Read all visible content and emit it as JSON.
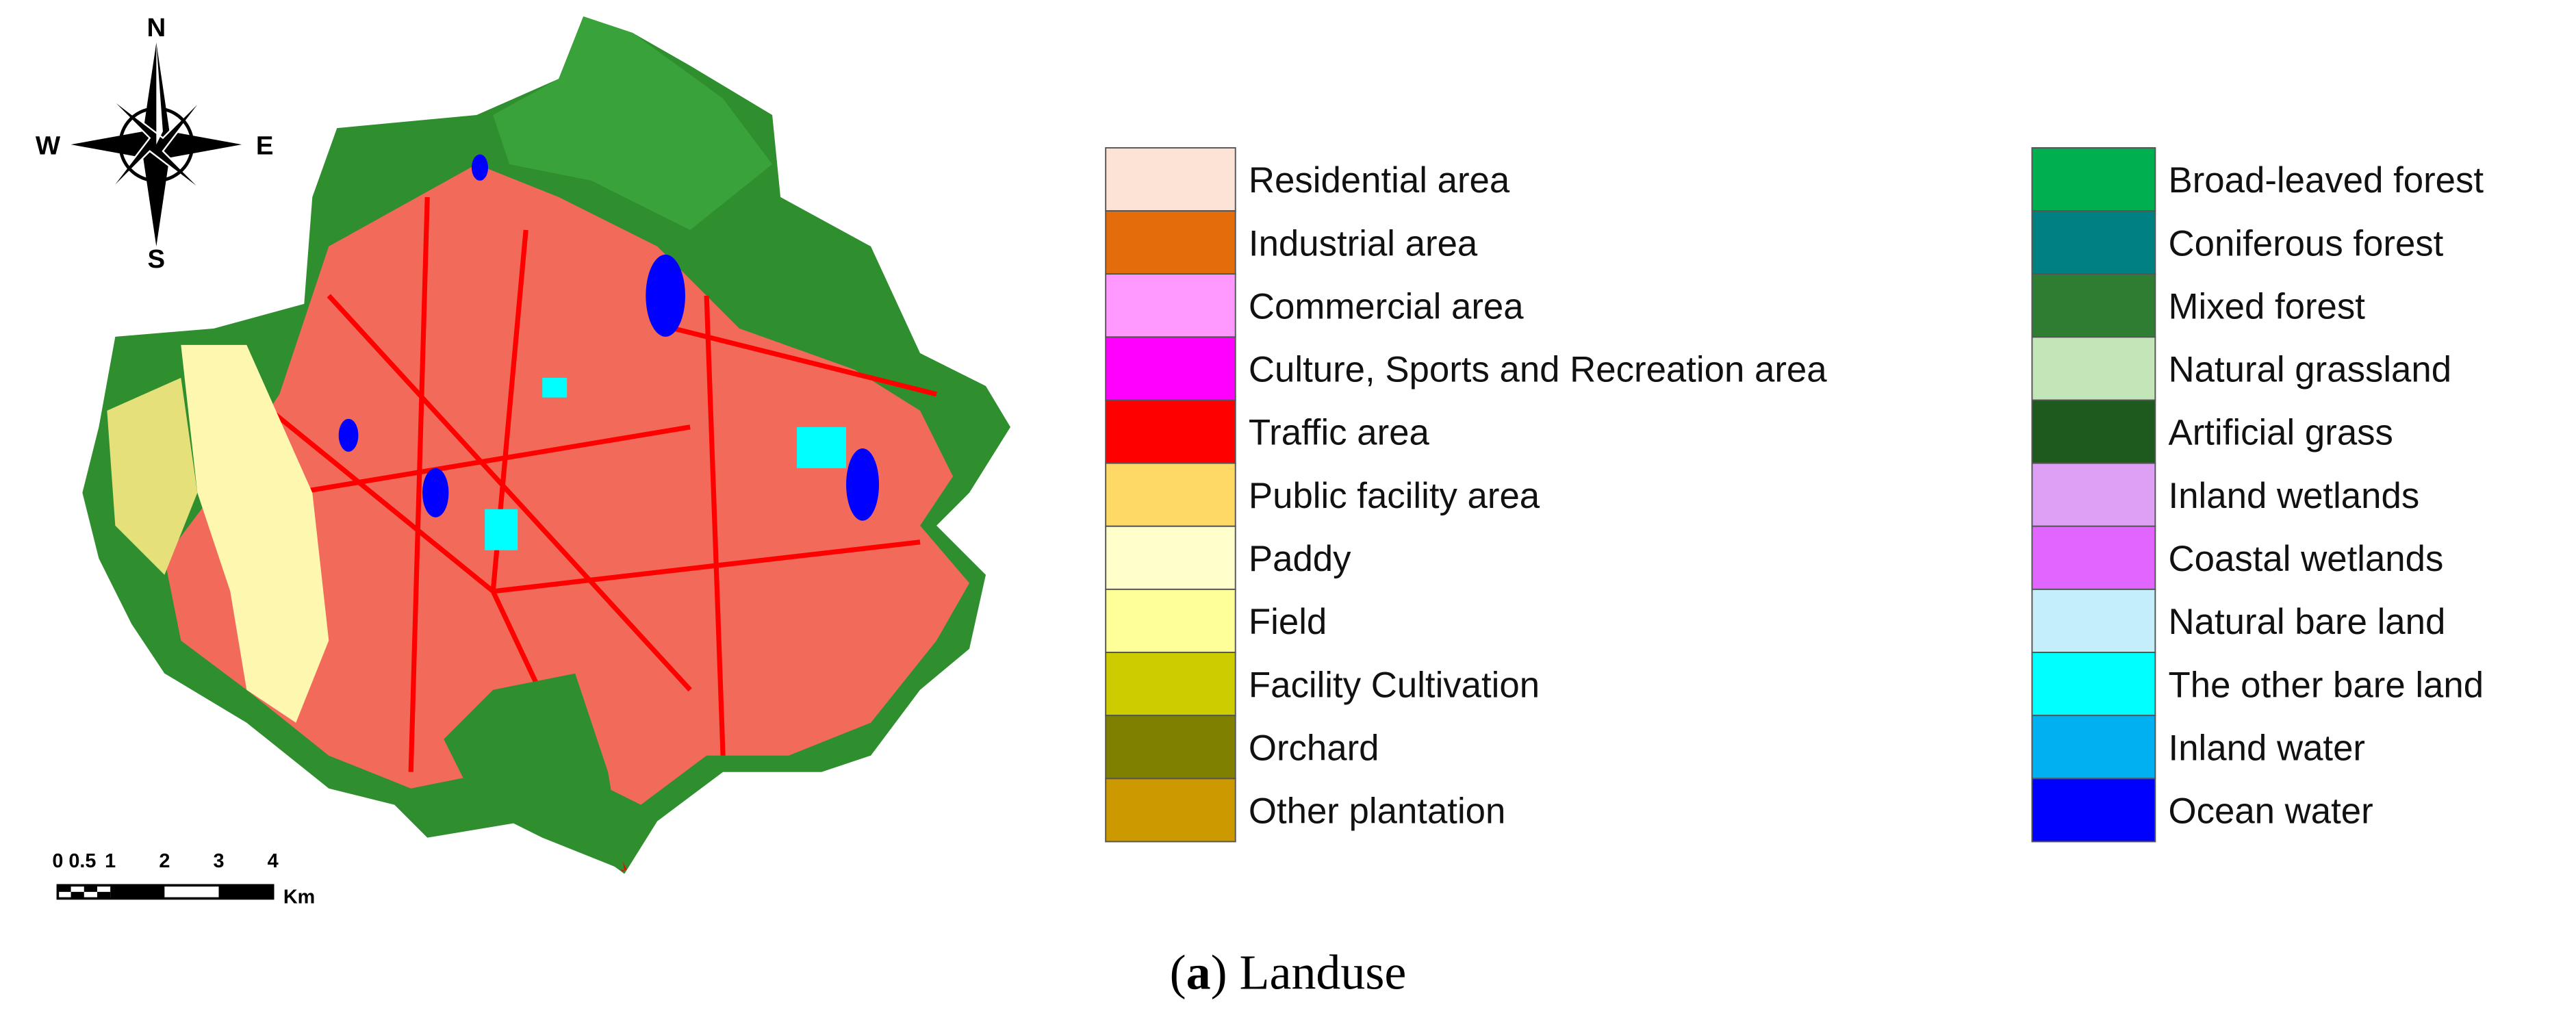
{
  "compass": {
    "north": "N",
    "south": "S",
    "west": "W",
    "east": "E"
  },
  "scale_bar": {
    "labels": [
      "0",
      "0.5",
      "1",
      "2",
      "3",
      "4"
    ],
    "unit": "Km"
  },
  "legend": {
    "left": [
      {
        "label": "Residential area",
        "color": "#fde3d6"
      },
      {
        "label": "Industrial area",
        "color": "#e46c0a"
      },
      {
        "label": "Commercial area",
        "color": "#ff99ff"
      },
      {
        "label": "Culture, Sports and Recreation area",
        "color": "#ff00ff"
      },
      {
        "label": "Traffic area",
        "color": "#ff0000"
      },
      {
        "label": "Public facility area",
        "color": "#ffd966"
      },
      {
        "label": "Paddy",
        "color": "#ffffcc"
      },
      {
        "label": "Field",
        "color": "#ffff99"
      },
      {
        "label": "Facility Cultivation",
        "color": "#cccc00"
      },
      {
        "label": "Orchard",
        "color": "#808000"
      },
      {
        "label": "Other plantation",
        "color": "#cc9900"
      }
    ],
    "right": [
      {
        "label": "Broad-leaved forest",
        "color": "#00b050"
      },
      {
        "label": "Coniferous forest",
        "color": "#008080"
      },
      {
        "label": "Mixed forest",
        "color": "#2e7d32"
      },
      {
        "label": "Natural grassland",
        "color": "#c3e6b8"
      },
      {
        "label": "Artificial grass",
        "color": "#1e5a1e"
      },
      {
        "label": "Inland wetlands",
        "color": "#dda0f5"
      },
      {
        "label": "Coastal wetlands",
        "color": "#e066ff"
      },
      {
        "label": "Natural bare land",
        "color": "#c5eefb"
      },
      {
        "label": "The other bare land",
        "color": "#00ffff"
      },
      {
        "label": "Inland water",
        "color": "#00b0f0"
      },
      {
        "label": "Ocean water",
        "color": "#0000ff"
      }
    ]
  },
  "caption": {
    "parts": [
      "(",
      "a",
      ") Landuse"
    ]
  }
}
